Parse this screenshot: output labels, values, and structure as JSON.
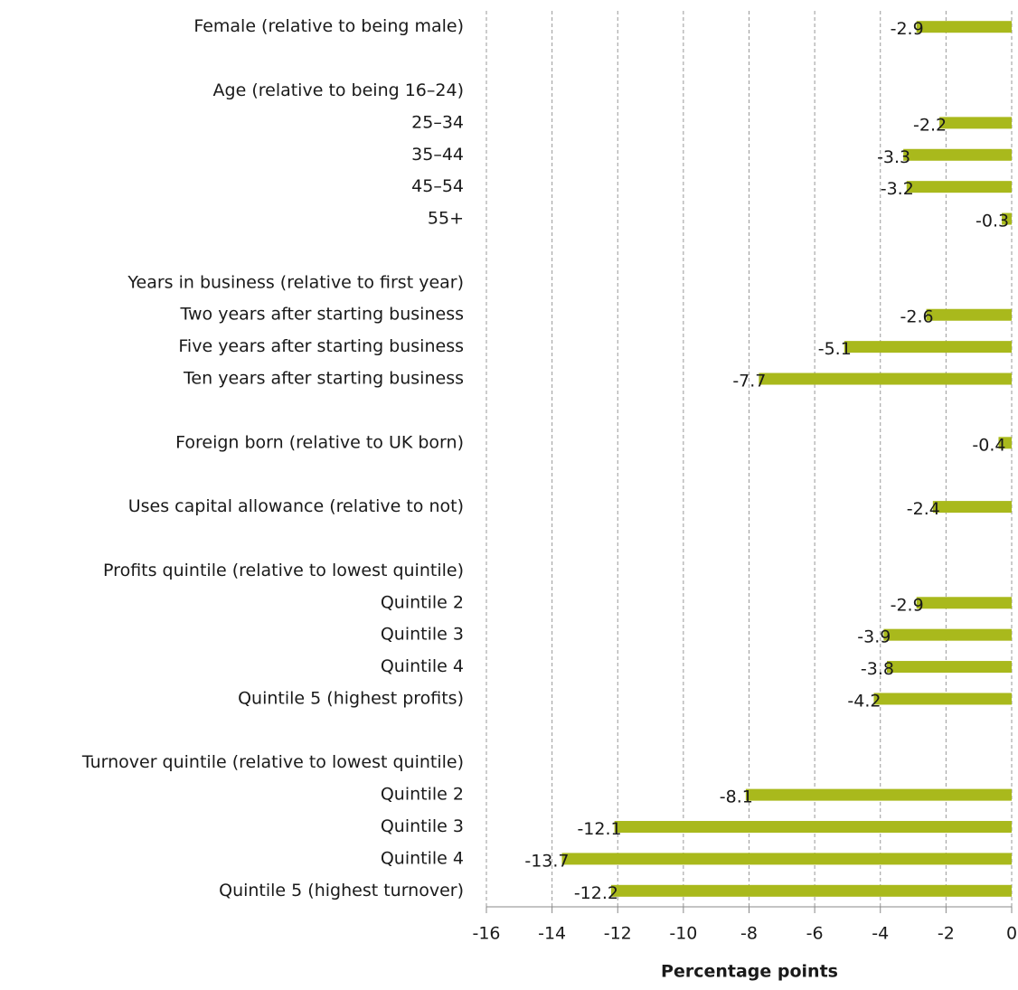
{
  "chart_data": {
    "type": "barh",
    "x_label": "Percentage points",
    "categories": [
      "Female (relative to being male)",
      null,
      "Age (relative to being 16–24)",
      "25–34",
      "35–44",
      "45–54",
      "55+",
      null,
      "Years in business (relative to first year)",
      "Two years after starting business",
      "Five years after starting business",
      "Ten years after starting business",
      null,
      "Foreign born (relative to UK born)",
      null,
      "Uses capital allowance (relative to not)",
      null,
      "Profits quintile (relative to lowest quintile)",
      "Quintile 2",
      "Quintile 3",
      "Quintile 4",
      "Quintile 5 (highest profits)",
      null,
      "Turnover quintile (relative to lowest quintile)",
      "Quintile 2",
      "Quintile 3",
      "Quintile 4",
      "Quintile 5 (highest turnover)"
    ],
    "values": [
      -2.9,
      null,
      null,
      -2.2,
      -3.3,
      -3.2,
      -0.3,
      null,
      null,
      -2.6,
      -5.1,
      -7.7,
      null,
      -0.4,
      null,
      -2.4,
      null,
      null,
      -2.9,
      -3.9,
      -3.8,
      -4.2,
      null,
      null,
      -8.1,
      -12.1,
      -13.7,
      -12.2
    ],
    "color": "#a9b91c",
    "xlim": [
      -16,
      0
    ],
    "xticks": [
      -16,
      -14,
      -12,
      -10,
      -8,
      -6,
      -4,
      -2,
      0
    ],
    "grid": true
  }
}
